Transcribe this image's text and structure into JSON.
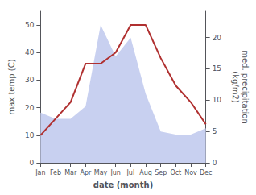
{
  "chart_data": {
    "type": "line",
    "categories": [
      "Jan",
      "Feb",
      "Mar",
      "Apr",
      "May",
      "Jun",
      "Jul",
      "Aug",
      "Sep",
      "Oct",
      "Nov",
      "Dec"
    ],
    "xlabel": "date (month)",
    "ylabel": "max temp (C)",
    "y2label": "med. precipitation\n(kg/m2)",
    "series": [
      {
        "type": "area",
        "axis": "y2",
        "color": "#c8d0f0",
        "values": [
          8,
          7,
          7,
          9,
          22,
          17,
          20,
          11,
          5,
          4.5,
          4.5,
          5.5
        ]
      },
      {
        "type": "line",
        "color": "#b03030",
        "values": [
          10,
          16,
          22,
          36,
          36,
          40,
          50,
          50,
          38,
          28,
          22,
          14
        ]
      }
    ],
    "ylim": [
      0,
      55
    ],
    "yticks": [
      0,
      10,
      20,
      30,
      40,
      50
    ],
    "y2lim": [
      0,
      24.2
    ],
    "y2ticks": [
      0,
      5,
      10,
      15,
      20
    ],
    "grid": false
  }
}
